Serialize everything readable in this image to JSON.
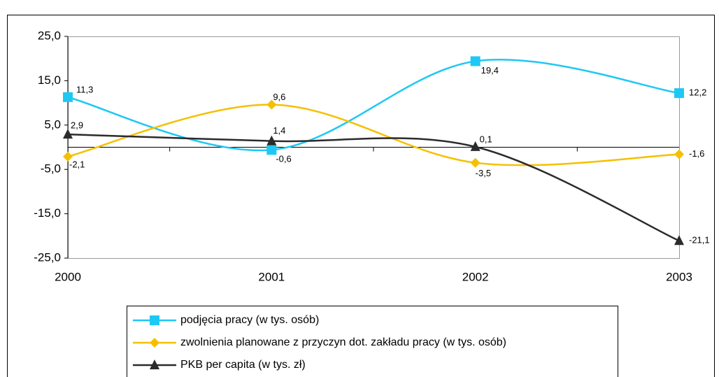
{
  "chart_data": {
    "type": "line",
    "categories": [
      "2000",
      "2001",
      "2002",
      "2003"
    ],
    "series": [
      {
        "name": "podjęcia pracy (w tys. osób)",
        "color": "#1ec8f5",
        "marker": "square",
        "values": [
          11.3,
          -0.6,
          19.4,
          12.2
        ],
        "value_labels": [
          "11,3",
          "-0,6",
          "19,4",
          "12,2"
        ]
      },
      {
        "name": "zwolnienia planowane z przyczyn dot. zakładu pracy (w tys. osób)",
        "color": "#f5c000",
        "marker": "diamond",
        "values": [
          -2.1,
          9.6,
          -3.5,
          -1.6
        ],
        "value_labels": [
          "-2,1",
          "9,6",
          "-3,5",
          "-1,6"
        ]
      },
      {
        "name": "PKB per capita (w tys. zł)",
        "color": "#2b2b2b",
        "marker": "triangle",
        "values": [
          2.9,
          1.4,
          0.1,
          -21.1
        ],
        "value_labels": [
          "2,9",
          "1,4",
          "0,1",
          "-21,1"
        ]
      }
    ],
    "ylim": [
      -25,
      25
    ],
    "yticks": [
      {
        "value": -25,
        "label": "-25,0"
      },
      {
        "value": -15,
        "label": "-15,0"
      },
      {
        "value": -5,
        "label": "-5,0"
      },
      {
        "value": 5,
        "label": "5,0"
      },
      {
        "value": 15,
        "label": "15,0"
      },
      {
        "value": 25,
        "label": "25,0"
      }
    ],
    "legend": "bottom"
  }
}
